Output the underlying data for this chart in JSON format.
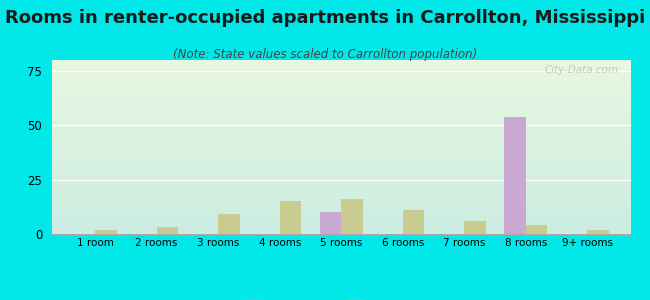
{
  "title": "Rooms in renter-occupied apartments in Carrollton, Mississippi",
  "subtitle": "(Note: State values scaled to Carrollton population)",
  "categories": [
    "1 room",
    "2 rooms",
    "3 rooms",
    "4 rooms",
    "5 rooms",
    "6 rooms",
    "7 rooms",
    "8 rooms",
    "9+ rooms"
  ],
  "carrollton_values": [
    0,
    0,
    0,
    0,
    10,
    0,
    0,
    54,
    0
  ],
  "mississippi_values": [
    2,
    3,
    9,
    15,
    16,
    11,
    6,
    4,
    2
  ],
  "carrollton_color": "#c9a8d4",
  "mississippi_color": "#c8cc90",
  "background_color": "#00e8e8",
  "ylim": [
    0,
    80
  ],
  "yticks": [
    0,
    25,
    50,
    75
  ],
  "bar_width": 0.35,
  "title_fontsize": 13,
  "subtitle_fontsize": 8.5,
  "watermark": "City-Data.com"
}
